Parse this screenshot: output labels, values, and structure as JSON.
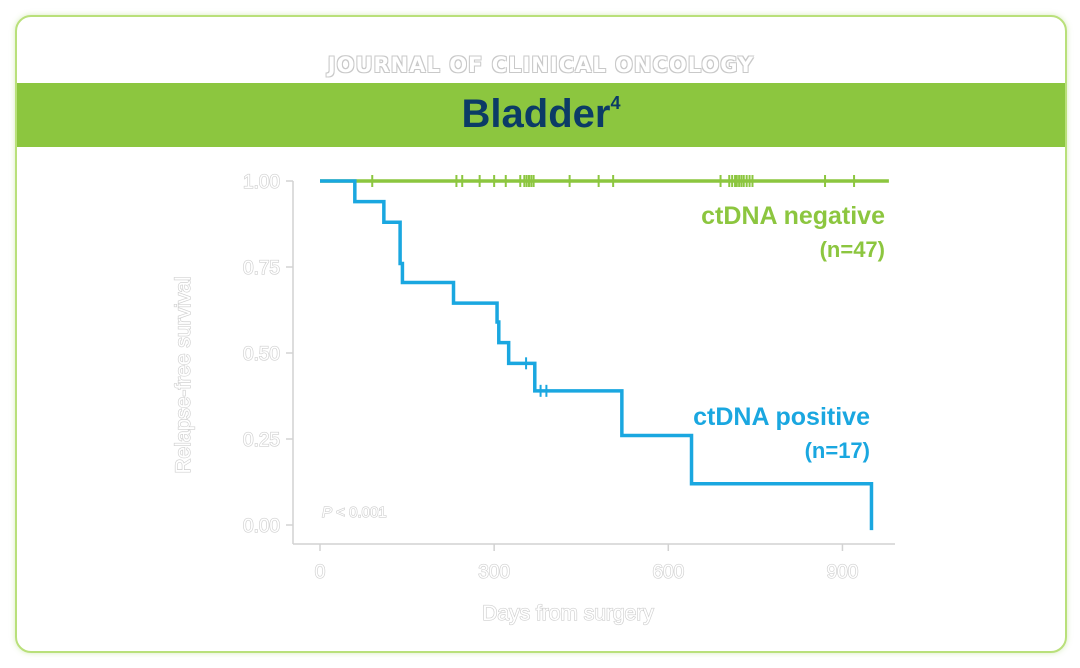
{
  "header": {
    "journal": "JOURNAL OF CLINICAL ONCOLOGY",
    "title": "Bladder",
    "title_superscript": "4"
  },
  "chart_data": {
    "type": "line",
    "subtype": "kaplan-meier step curve",
    "xlabel": "Days from surgery",
    "ylabel": "Relapse-free survival",
    "xlim": [
      -10,
      990
    ],
    "ylim": [
      0,
      1
    ],
    "x_ticks": [
      0,
      300,
      600,
      900
    ],
    "x_tick_labels": [
      "0",
      "300",
      "600",
      "900"
    ],
    "y_ticks": [
      0,
      0.25,
      0.5,
      0.75,
      1.0
    ],
    "y_tick_labels": [
      "0.00",
      "0.25",
      "0.50",
      "0.75",
      "1.00"
    ],
    "annotation": {
      "p_symbol": "P",
      "p_rest": " < 0.001"
    },
    "series": [
      {
        "name": "ctDNA negative",
        "n_label": "(n=47)",
        "color": "#8cc63f",
        "steps": [
          [
            0,
            1.0
          ],
          [
            980,
            1.0
          ]
        ],
        "censor_x": [
          90,
          235,
          245,
          275,
          300,
          320,
          345,
          352,
          356,
          360,
          364,
          368,
          430,
          480,
          505,
          690,
          705,
          710,
          715,
          718,
          722,
          726,
          730,
          735,
          740,
          745,
          870,
          920
        ]
      },
      {
        "name": "ctDNA positive",
        "n_label": "(n=17)",
        "color": "#1aa7e0",
        "steps": [
          [
            0,
            1.0
          ],
          [
            60,
            0.94
          ],
          [
            110,
            0.88
          ],
          [
            138,
            0.76
          ],
          [
            142,
            0.705
          ],
          [
            230,
            0.645
          ],
          [
            305,
            0.59
          ],
          [
            308,
            0.53
          ],
          [
            325,
            0.47
          ],
          [
            370,
            0.39
          ],
          [
            520,
            0.26
          ],
          [
            640,
            0.12
          ],
          [
            950,
            0.12
          ],
          [
            950,
            -0.015
          ]
        ],
        "censor_x": [
          355,
          380,
          390
        ]
      }
    ]
  }
}
